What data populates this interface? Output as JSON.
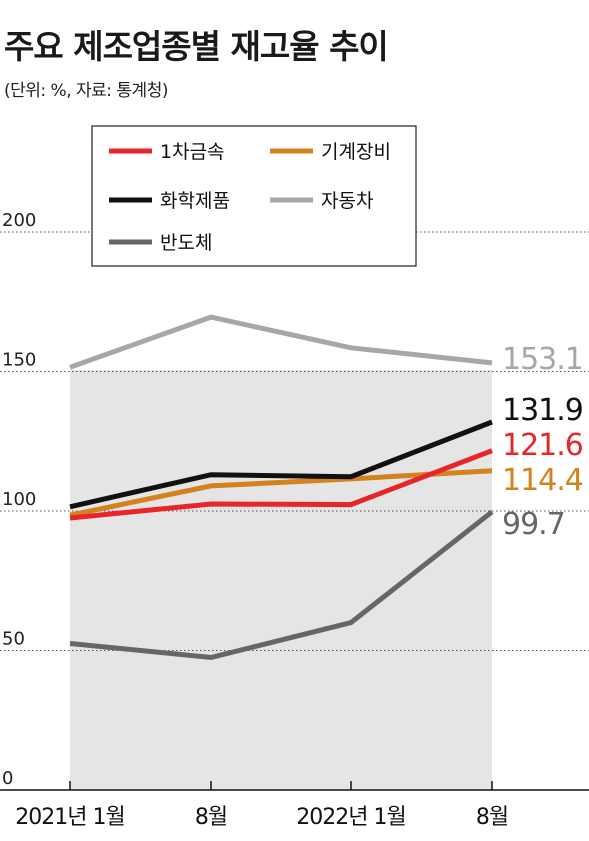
{
  "title": "주요 제조업종별 재고율 추이",
  "unit_note": "(단위:  %, 자료: 통계청)",
  "chart_data": {
    "type": "line",
    "title": "주요 제조업종별 재고율 추이",
    "x": [
      "2021년 1월",
      "8월",
      "2022년 1월",
      "8월"
    ],
    "ylim": [
      0,
      200
    ],
    "yticks": [
      0,
      50,
      100,
      150,
      200
    ],
    "grid": "dotted horizontal",
    "legend_position": "top",
    "series": [
      {
        "name": "1차금속",
        "color": "#e8262a",
        "values": [
          97.5,
          102.5,
          102.3,
          121.6
        ],
        "end_label": "121.6"
      },
      {
        "name": "기계장비",
        "color": "#d4821e",
        "values": [
          98.5,
          109.0,
          111.5,
          114.4
        ],
        "end_label": "114.4"
      },
      {
        "name": "화학제품",
        "color": "#111111",
        "values": [
          101.5,
          113.0,
          112.3,
          131.9
        ],
        "end_label": "131.9"
      },
      {
        "name": "자동차",
        "color": "#a7a7a9",
        "values": [
          151.5,
          169.5,
          158.5,
          153.1
        ],
        "end_label": "153.1"
      },
      {
        "name": "반도체",
        "color": "#666667",
        "values": [
          52.5,
          47.5,
          60.0,
          99.7
        ],
        "end_label": "99.7"
      }
    ]
  }
}
